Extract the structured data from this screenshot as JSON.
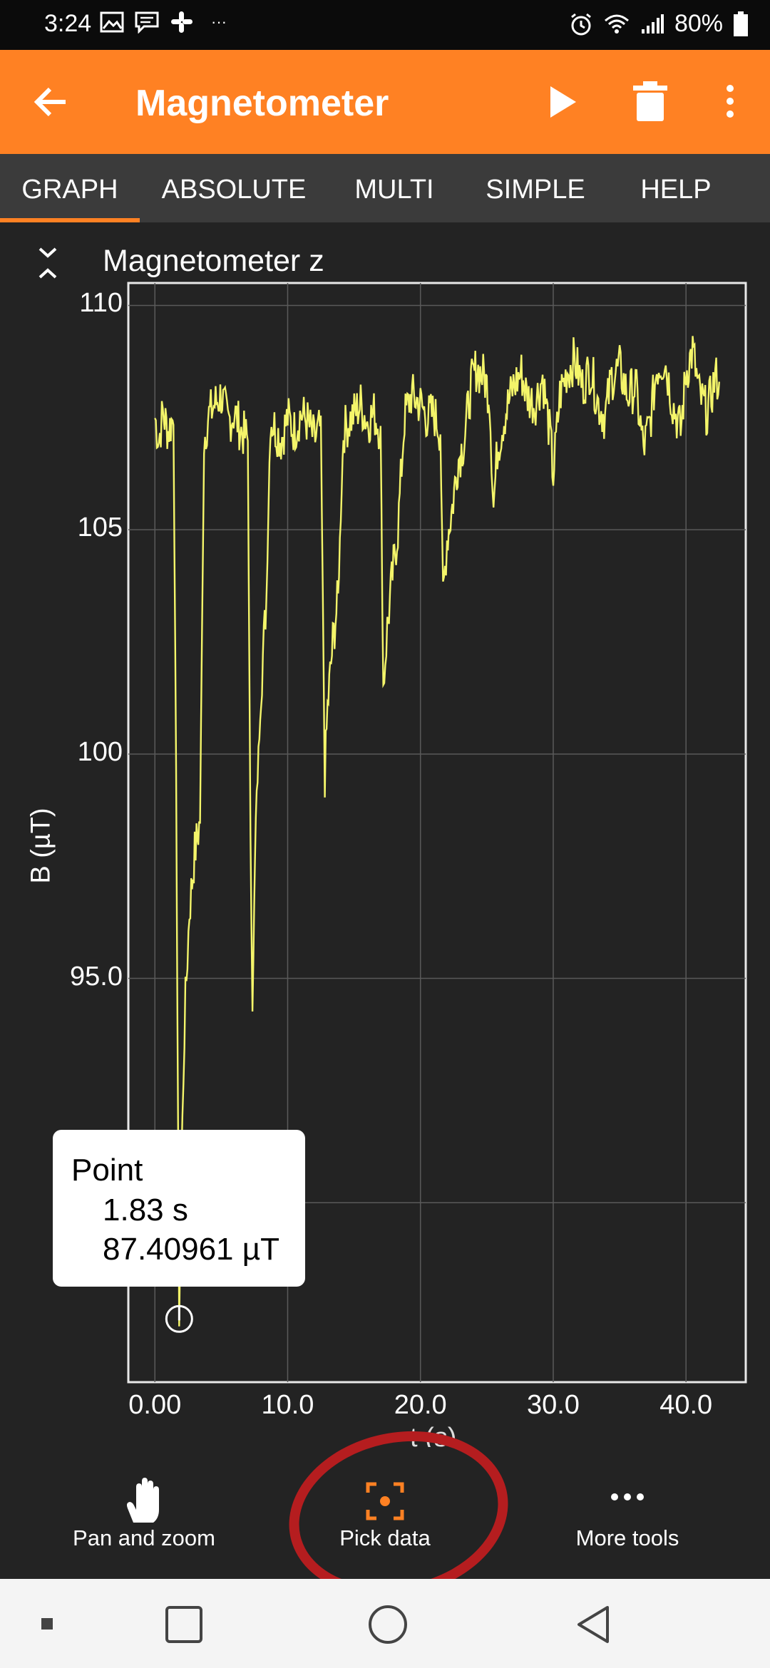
{
  "status_bar": {
    "time": "3:24",
    "overflow": "···",
    "battery": "80%",
    "icons_left": [
      "gallery-icon",
      "message-icon",
      "slack-icon"
    ],
    "icons_right": [
      "alarm-icon",
      "wifi-icon",
      "signal-icon",
      "battery-icon"
    ]
  },
  "app_bar": {
    "title": "Magnetometer",
    "background": "#ff8123",
    "icons": [
      "back-arrow-icon",
      "play-icon",
      "trash-icon",
      "more-vert-icon"
    ]
  },
  "tabs": [
    {
      "label": "GRAPH",
      "active": true
    },
    {
      "label": "ABSOLUTE",
      "active": false
    },
    {
      "label": "MULTI",
      "active": false
    },
    {
      "label": "SIMPLE",
      "active": false
    },
    {
      "label": "HELP",
      "active": false
    }
  ],
  "graph": {
    "title": "Magnetometer z",
    "tooltip": {
      "heading": "Point",
      "time": "1.83 s",
      "value": "87.40961 µT"
    }
  },
  "chart_data": {
    "type": "line",
    "title": "Magnetometer z",
    "xlabel": "t (s)",
    "ylabel": "B (µT)",
    "xlim": [
      -2,
      44.5
    ],
    "ylim": [
      86.0,
      110.5
    ],
    "x_ticks": [
      "0.00",
      "10.0",
      "20.0",
      "30.0",
      "40.0"
    ],
    "y_ticks": [
      "110",
      "105",
      "100",
      "95.0"
    ],
    "line_color": "#f4f56a",
    "grid": true,
    "series": [
      {
        "x": [
          0.0,
          0.3,
          0.6,
          1.0,
          1.4,
          1.6,
          1.7,
          1.83,
          2.0,
          2.3,
          2.6,
          3.0,
          3.4,
          3.7,
          4.0,
          4.5,
          5.0,
          5.5,
          6.0,
          6.5,
          7.0,
          7.2,
          7.35,
          7.6,
          8.0,
          8.4,
          8.7,
          9.0,
          9.5,
          10.0,
          10.5,
          11.0,
          11.5,
          12.0,
          12.5,
          12.8,
          13.0,
          13.4,
          13.8,
          14.2,
          14.8,
          15.5,
          16.0,
          16.5,
          17.0,
          17.2,
          17.5,
          17.9,
          18.3,
          18.8,
          19.3,
          20.0,
          20.5,
          21.0,
          21.5,
          21.7,
          22.0,
          22.4,
          22.8,
          23.3,
          23.8,
          24.2,
          24.8,
          25.2,
          25.5,
          25.8,
          26.3,
          27.0,
          27.6,
          28.0,
          28.6,
          29.2,
          29.8,
          30.0,
          30.5,
          31.0,
          31.6,
          32.2,
          32.8,
          33.4,
          33.9,
          34.4,
          35.0,
          35.6,
          36.2,
          36.8,
          37.3,
          37.8,
          38.4,
          39.0,
          39.6,
          40.0,
          40.5,
          41.0,
          41.6,
          42.2,
          42.5
        ],
        "values": [
          107.5,
          107.0,
          107.6,
          107.2,
          107.5,
          99.5,
          94.0,
          87.4,
          91.0,
          94.5,
          96.5,
          97.8,
          98.5,
          107.0,
          107.5,
          107.8,
          108.0,
          107.4,
          107.6,
          107.2,
          107.0,
          98.0,
          94.5,
          98.5,
          101.5,
          103.5,
          107.5,
          107.3,
          107.0,
          107.5,
          107.2,
          107.6,
          107.4,
          107.0,
          107.3,
          99.5,
          101.0,
          102.5,
          103.5,
          107.2,
          107.5,
          107.8,
          107.4,
          107.6,
          107.2,
          101.5,
          102.8,
          104.0,
          105.0,
          107.5,
          108.0,
          107.8,
          107.5,
          107.6,
          107.2,
          103.5,
          104.8,
          105.5,
          106.5,
          107.0,
          108.2,
          108.6,
          108.4,
          108.0,
          105.5,
          106.8,
          107.5,
          108.2,
          108.5,
          108.0,
          107.8,
          108.4,
          107.0,
          106.2,
          108.0,
          108.5,
          108.8,
          108.2,
          108.6,
          107.8,
          107.5,
          108.4,
          108.6,
          108.0,
          108.2,
          106.8,
          107.4,
          108.6,
          108.8,
          107.8,
          107.2,
          108.5,
          109.0,
          108.0,
          107.6,
          108.4,
          108.3
        ]
      }
    ]
  },
  "tools": [
    {
      "label": "Pan and zoom",
      "icon": "hand-icon"
    },
    {
      "label": "Pick data",
      "icon": "pick-data-icon",
      "active": true
    },
    {
      "label": "More tools",
      "icon": "more-horiz-icon"
    }
  ],
  "nav_bar": {
    "icons": [
      "recents-dot-icon",
      "overview-square-icon",
      "home-circle-icon",
      "back-triangle-icon"
    ]
  }
}
